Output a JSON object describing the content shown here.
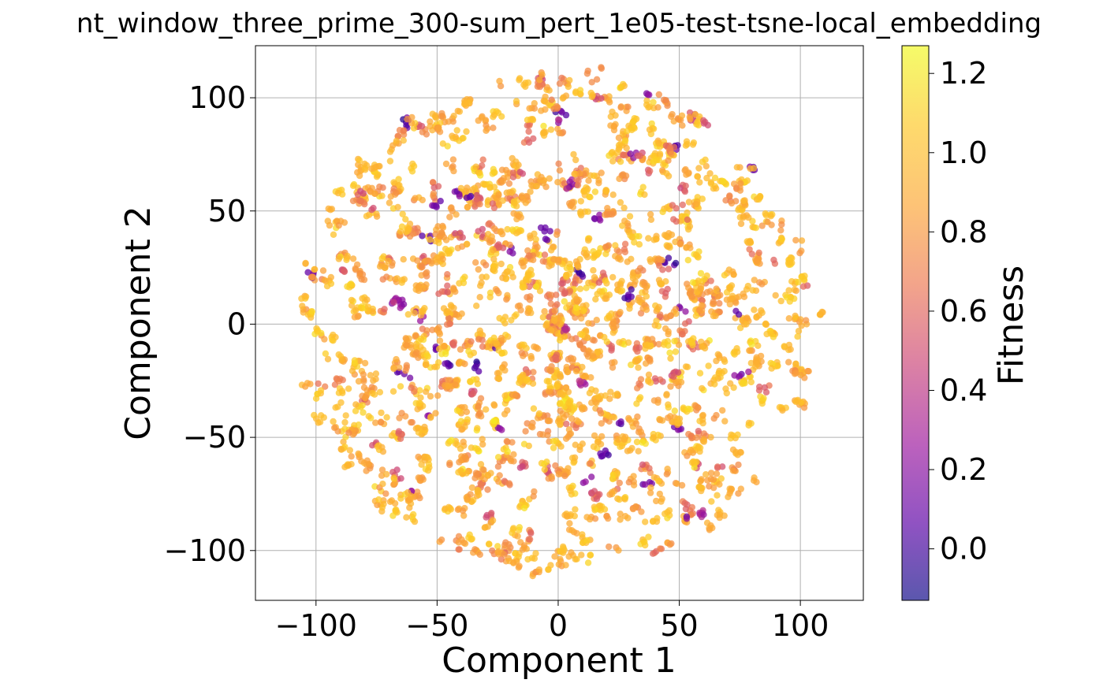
{
  "chart_data": {
    "type": "scatter",
    "title": "nt_window_three_prime_300-sum_pert_1e05-test-tsne-local_embedding",
    "xlabel": "Component 1",
    "ylabel": "Component 2",
    "xlim": [
      -125,
      126
    ],
    "ylim": [
      -122,
      123
    ],
    "xticks": [
      -100,
      -50,
      0,
      50,
      100
    ],
    "yticks": [
      -100,
      -50,
      0,
      50,
      100
    ],
    "xtick_labels": [
      "−100",
      "−50",
      "0",
      "50",
      "100"
    ],
    "ytick_labels": [
      "−100",
      "−50",
      "0",
      "50",
      "100"
    ],
    "grid": true,
    "colormap": "plasma",
    "marker_alpha": 0.75,
    "colorbar": {
      "label": "Fitness",
      "range": [
        -0.13,
        1.27
      ],
      "ticks": [
        0.0,
        0.2,
        0.4,
        0.6,
        0.8,
        1.0,
        1.2
      ],
      "tick_labels": [
        "0.0",
        "0.2",
        "0.4",
        "0.6",
        "0.8",
        "1.0",
        "1.2"
      ]
    },
    "points_summary": "roughly 4000 points in a disk of radius ~112 centered at origin; fitness mostly 0.7-1.1 with sparse low-fitness (0.0-0.4) points",
    "cluster_examples": [
      {
        "x": -90,
        "y": -40,
        "fitness": 1.0
      },
      {
        "x": 0,
        "y": 0,
        "fitness": 0.95
      },
      {
        "x": 50,
        "y": 50,
        "fitness": 0.6
      },
      {
        "x": -5,
        "y": 40,
        "fitness": 0.1
      },
      {
        "x": 15,
        "y": 110,
        "fitness": 0.75
      }
    ]
  }
}
